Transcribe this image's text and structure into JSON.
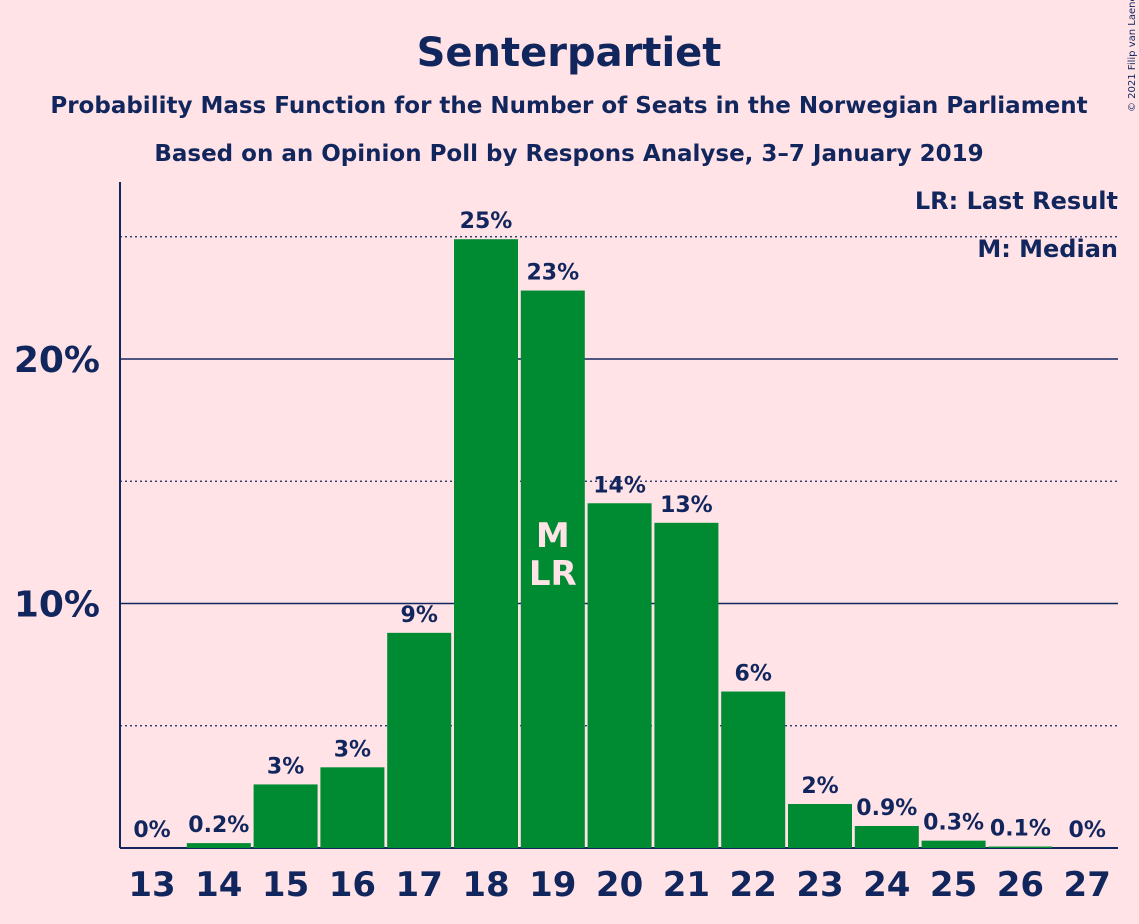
{
  "chart_data": {
    "type": "bar",
    "title": "Senterpartiet",
    "subtitle": "Probability Mass Function for the Number of Seats in the Norwegian Parliament",
    "subtitle2": "Based on an Opinion Poll by Respons Analyse, 3–7 January 2019",
    "copyright": "© 2021 Filip van Laenen",
    "legend": {
      "position": "top-right",
      "items": [
        "LR: Last Result",
        "M: Median"
      ]
    },
    "categories": [
      "13",
      "14",
      "15",
      "16",
      "17",
      "18",
      "19",
      "20",
      "21",
      "22",
      "23",
      "24",
      "25",
      "26",
      "27"
    ],
    "values": [
      0,
      0.2,
      2.6,
      3.3,
      8.8,
      24.9,
      22.8,
      14.1,
      13.3,
      6.4,
      1.8,
      0.9,
      0.3,
      0.06,
      0
    ],
    "value_labels": [
      "0%",
      "0.2%",
      "3%",
      "3%",
      "9%",
      "25%",
      "23%",
      "14%",
      "13%",
      "6%",
      "2%",
      "0.9%",
      "0.3%",
      "0.1%",
      "0%"
    ],
    "yticks": [
      10,
      20
    ],
    "ytick_labels": [
      "10%",
      "20%"
    ],
    "dotted_gridlines": [
      5,
      15,
      25
    ],
    "ylim": [
      0,
      27
    ],
    "bar_marker": {
      "category": "19",
      "lines": [
        "M",
        "LR"
      ]
    },
    "xlabel": "",
    "ylabel": "",
    "colors": {
      "bar": "#008b33",
      "text": "#12265e",
      "background": "#ffe3e6",
      "marker": "#ffe3e6"
    }
  }
}
